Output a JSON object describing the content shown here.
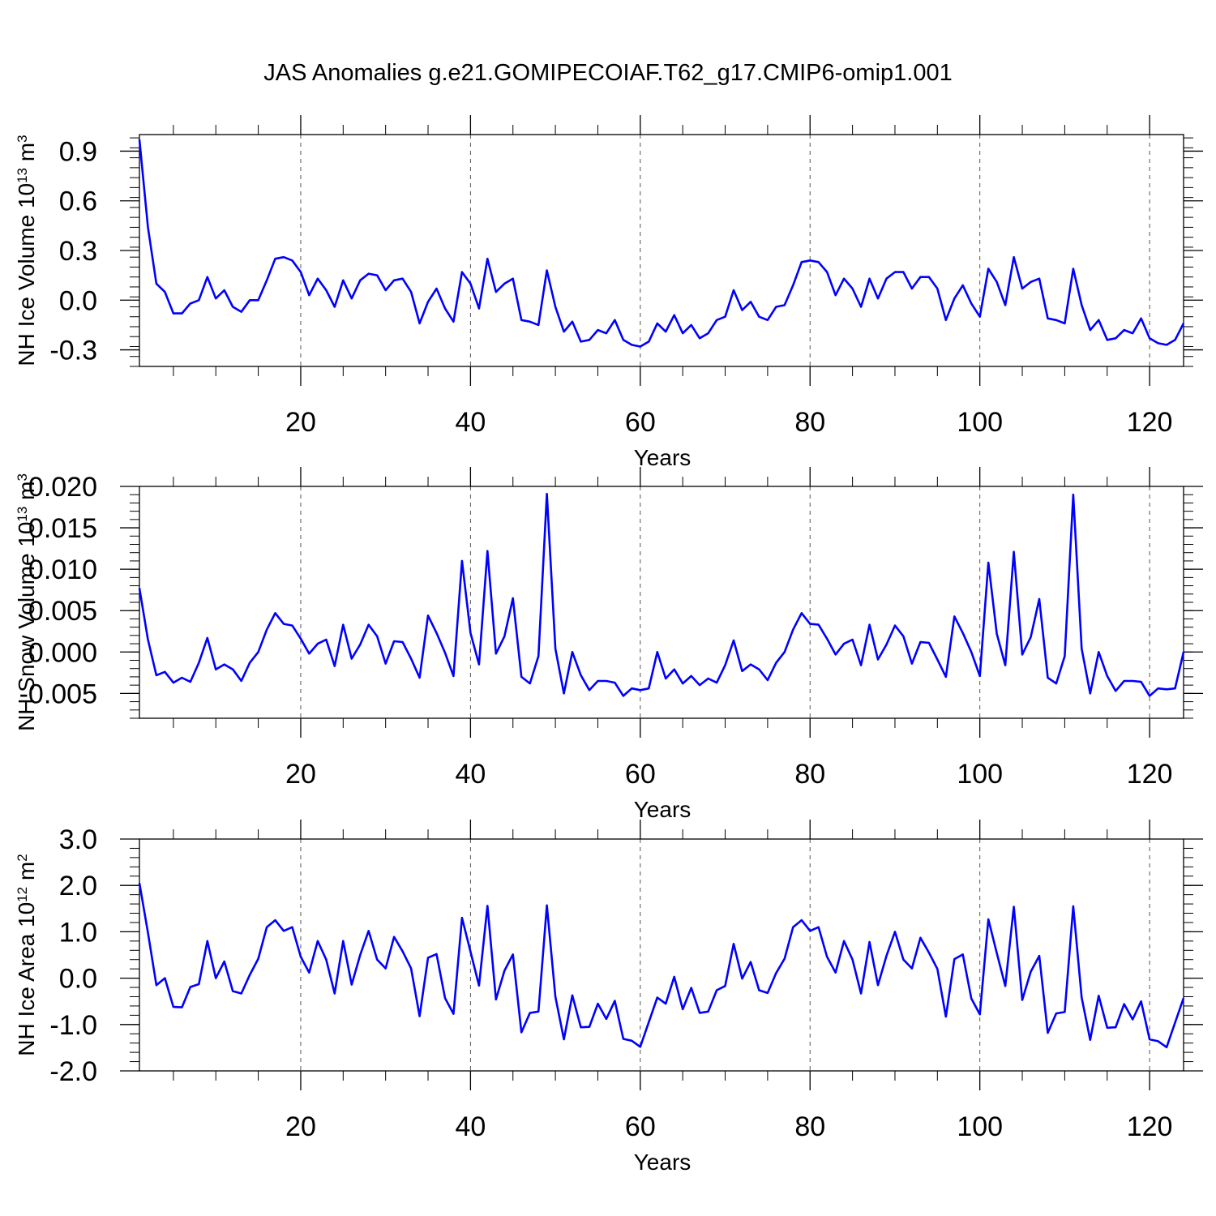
{
  "title": "JAS Anomalies g.e21.GOMIPECOIAF.T62_g17.CMIP6-omip1.001",
  "colors": {
    "series": "#0000ff",
    "axis": "#000000",
    "grid": "#555555"
  },
  "chart_data": [
    {
      "type": "line",
      "title": "",
      "xlabel": "Years",
      "ylabel": "NH Ice Volume 10",
      "ylabel_exp": "13",
      "ylabel_unit": " m",
      "ylabel_unit_exp": "3",
      "xlim": [
        1,
        124
      ],
      "ylim": [
        -0.4,
        1.0
      ],
      "xticks": [
        20,
        40,
        60,
        80,
        100,
        120
      ],
      "xtick_labels": [
        "20",
        "40",
        "60",
        "80",
        "100",
        "120"
      ],
      "yticks": [
        -0.3,
        0.0,
        0.3,
        0.6,
        0.9
      ],
      "ytick_labels": [
        "-0.3",
        "0.0",
        "0.3",
        "0.6",
        "0.9"
      ],
      "grid": "vertical dashed at major x ticks",
      "series": [
        {
          "values": [
            0.97,
            0.44,
            0.1,
            0.05,
            -0.08,
            -0.08,
            -0.02,
            0.0,
            0.14,
            0.01,
            0.06,
            -0.04,
            -0.07,
            0.0,
            0.0,
            0.12,
            0.25,
            0.26,
            0.24,
            0.17,
            0.03,
            0.13,
            0.06,
            -0.04,
            0.12,
            0.01,
            0.12,
            0.16,
            0.15,
            0.06,
            0.12,
            0.13,
            0.05,
            -0.14,
            -0.01,
            0.07,
            -0.05,
            -0.13,
            0.17,
            0.1,
            -0.05,
            0.25,
            0.05,
            0.1,
            0.13,
            -0.12,
            -0.13,
            -0.15,
            0.18,
            -0.04,
            -0.19,
            -0.13,
            -0.25,
            -0.24,
            -0.18,
            -0.2,
            -0.12,
            -0.24,
            -0.27,
            -0.28,
            -0.25,
            -0.14,
            -0.19,
            -0.09,
            -0.2,
            -0.15,
            -0.23,
            -0.2,
            -0.12,
            -0.1,
            0.06,
            -0.06,
            -0.01,
            -0.1,
            -0.12,
            -0.04,
            -0.03,
            0.09,
            0.23,
            0.24,
            0.23,
            0.17,
            0.03,
            0.13,
            0.07,
            -0.04,
            0.13,
            0.01,
            0.13,
            0.17,
            0.17,
            0.07,
            0.14,
            0.14,
            0.07,
            -0.12,
            0.01,
            0.09,
            -0.02,
            -0.1,
            0.19,
            0.11,
            -0.03,
            0.26,
            0.07,
            0.11,
            0.13,
            -0.11,
            -0.12,
            -0.14,
            0.19,
            -0.03,
            -0.18,
            -0.12,
            -0.24,
            -0.23,
            -0.18,
            -0.2,
            -0.11,
            -0.23,
            -0.26,
            -0.27,
            -0.24,
            -0.14
          ]
        }
      ]
    },
    {
      "type": "line",
      "title": "",
      "xlabel": "Years",
      "ylabel": "NH Snow Volume 10",
      "ylabel_exp": "13",
      "ylabel_unit": " m",
      "ylabel_unit_exp": "3",
      "xlim": [
        1,
        124
      ],
      "ylim": [
        -0.008,
        0.02
      ],
      "xticks": [
        20,
        40,
        60,
        80,
        100,
        120
      ],
      "xtick_labels": [
        "20",
        "40",
        "60",
        "80",
        "100",
        "120"
      ],
      "yticks": [
        -0.005,
        0.0,
        0.005,
        0.01,
        0.015,
        0.02
      ],
      "ytick_labels": [
        "-0.005",
        "0.000",
        "0.005",
        "0.010",
        "0.015",
        "0.020"
      ],
      "grid": "vertical dashed at major x ticks",
      "series": [
        {
          "values": [
            0.0077,
            0.0015,
            -0.0028,
            -0.0024,
            -0.0037,
            -0.0031,
            -0.0036,
            -0.0013,
            0.0017,
            -0.0021,
            -0.0015,
            -0.0021,
            -0.0035,
            -0.0013,
            0.0,
            0.0027,
            0.0047,
            0.0034,
            0.0032,
            0.0016,
            -0.0002,
            0.001,
            0.0015,
            -0.0017,
            0.0033,
            -0.0008,
            0.0009,
            0.0033,
            0.0019,
            -0.0014,
            0.0013,
            0.0012,
            -0.0008,
            -0.0031,
            0.0044,
            0.0023,
            -0.0001,
            -0.0029,
            0.011,
            0.0023,
            -0.0015,
            0.0122,
            -0.0002,
            0.0019,
            0.0065,
            -0.003,
            -0.0038,
            -0.0005,
            0.0191,
            0.0004,
            -0.005,
            0.0,
            -0.0028,
            -0.0046,
            -0.0035,
            -0.0035,
            -0.0037,
            -0.0053,
            -0.0044,
            -0.0046,
            -0.0044,
            0.0,
            -0.0032,
            -0.0021,
            -0.0038,
            -0.0029,
            -0.004,
            -0.0032,
            -0.0037,
            -0.0016,
            0.0014,
            -0.0023,
            -0.0015,
            -0.0021,
            -0.0034,
            -0.0013,
            0.0,
            0.0027,
            0.0047,
            0.0034,
            0.0033,
            0.0016,
            -0.0003,
            0.001,
            0.0015,
            -0.0016,
            0.0033,
            -0.0009,
            0.0009,
            0.0032,
            0.0019,
            -0.0014,
            0.0012,
            0.0011,
            -0.0009,
            -0.003,
            0.0043,
            0.0023,
            0.0,
            -0.0029,
            0.0108,
            0.0022,
            -0.0016,
            0.0121,
            -0.0003,
            0.0018,
            0.0064,
            -0.0031,
            -0.0038,
            -0.0005,
            0.019,
            0.0004,
            -0.005,
            0.0,
            -0.0029,
            -0.0047,
            -0.0035,
            -0.0035,
            -0.0036,
            -0.0053,
            -0.0044,
            -0.0045,
            -0.0044,
            0.0
          ]
        }
      ]
    },
    {
      "type": "line",
      "title": "",
      "xlabel": "Years",
      "ylabel": "NH Ice Area 10",
      "ylabel_exp": "12",
      "ylabel_unit": " m",
      "ylabel_unit_exp": "2",
      "xlim": [
        1,
        124
      ],
      "ylim": [
        -2.0,
        3.0
      ],
      "xticks": [
        20,
        40,
        60,
        80,
        100,
        120
      ],
      "xtick_labels": [
        "20",
        "40",
        "60",
        "80",
        "100",
        "120"
      ],
      "yticks": [
        -2.0,
        -1.0,
        0.0,
        1.0,
        2.0,
        3.0
      ],
      "ytick_labels": [
        "-2.0",
        "-1.0",
        "0.0",
        "1.0",
        "2.0",
        "3.0"
      ],
      "grid": "vertical dashed at major x ticks",
      "series": [
        {
          "values": [
            2.05,
            0.98,
            -0.15,
            0.0,
            -0.62,
            -0.63,
            -0.19,
            -0.13,
            0.8,
            0.0,
            0.36,
            -0.28,
            -0.33,
            0.07,
            0.42,
            1.1,
            1.25,
            1.02,
            1.1,
            0.46,
            0.12,
            0.8,
            0.4,
            -0.33,
            0.8,
            -0.14,
            0.5,
            1.02,
            0.4,
            0.21,
            0.89,
            0.58,
            0.21,
            -0.82,
            0.44,
            0.52,
            -0.43,
            -0.77,
            1.3,
            0.57,
            -0.16,
            1.56,
            -0.46,
            0.16,
            0.51,
            -1.17,
            -0.75,
            -0.72,
            1.57,
            -0.4,
            -1.32,
            -0.37,
            -1.06,
            -1.05,
            -0.55,
            -0.88,
            -0.49,
            -1.31,
            -1.35,
            -1.48,
            -0.95,
            -0.42,
            -0.55,
            0.03,
            -0.67,
            -0.21,
            -0.75,
            -0.72,
            -0.26,
            -0.17,
            0.74,
            -0.01,
            0.35,
            -0.26,
            -0.32,
            0.11,
            0.42,
            1.1,
            1.25,
            1.02,
            1.1,
            0.46,
            0.12,
            0.8,
            0.4,
            -0.33,
            0.78,
            -0.15,
            0.48,
            1.0,
            0.4,
            0.21,
            0.87,
            0.55,
            0.2,
            -0.83,
            0.41,
            0.51,
            -0.44,
            -0.78,
            1.27,
            0.54,
            -0.17,
            1.54,
            -0.47,
            0.14,
            0.48,
            -1.18,
            -0.76,
            -0.73,
            1.55,
            -0.42,
            -1.33,
            -0.38,
            -1.07,
            -1.06,
            -0.56,
            -0.89,
            -0.5,
            -1.32,
            -1.36,
            -1.49,
            -0.96,
            -0.43
          ]
        }
      ]
    }
  ]
}
